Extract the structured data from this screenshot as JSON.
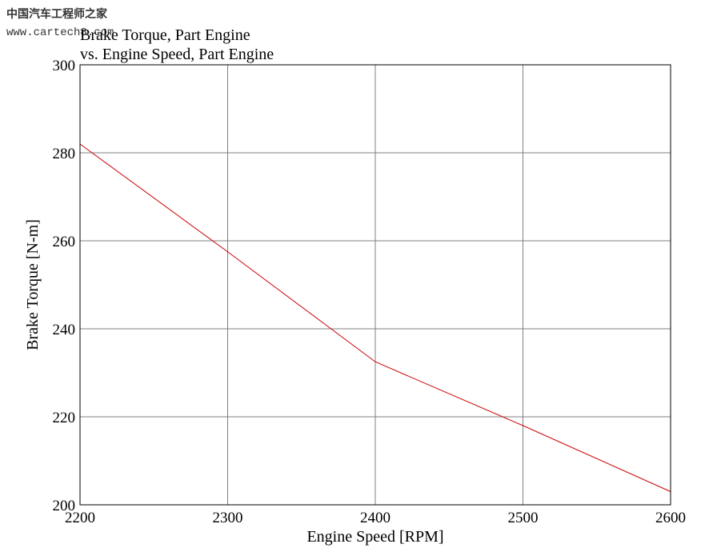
{
  "watermark": {
    "site_name": "中国汽车工程师之家",
    "url": "www.cartech8.com"
  },
  "colors": {
    "line": "#cc0000",
    "grid": "#808080",
    "frame": "#000000",
    "watermark": "#333333"
  },
  "chart_data": {
    "type": "line",
    "title": "Brake Torque, Part Engine",
    "subtitle": "vs. Engine Speed, Part Engine",
    "xlabel": "Engine Speed [RPM]",
    "ylabel": "Brake Torque [N-m]",
    "xlim": [
      2200,
      2600
    ],
    "ylim": [
      200,
      300
    ],
    "x_ticks": [
      2200,
      2300,
      2400,
      2500,
      2600
    ],
    "y_ticks": [
      200,
      220,
      240,
      260,
      280,
      300
    ],
    "grid": true,
    "series": [
      {
        "x": [
          2200,
          2300,
          2400,
          2500,
          2600
        ],
        "y": [
          282,
          257.5,
          232.5,
          218,
          203
        ]
      }
    ]
  }
}
